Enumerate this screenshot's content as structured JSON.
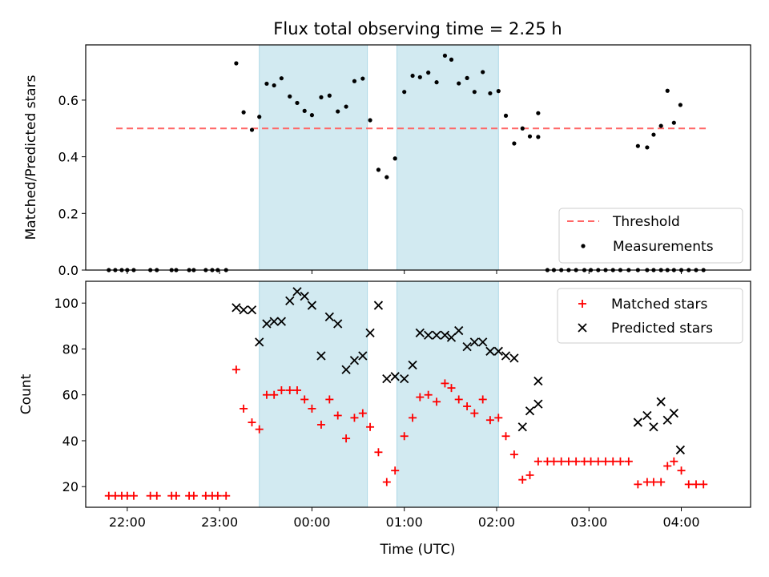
{
  "chart_data": [
    {
      "type": "scatter",
      "title": "Flux total observing time = 2.25 h",
      "xlabel": "",
      "ylabel": "Matched/Predicted stars",
      "xlim": [
        21.55,
        28.75
      ],
      "ylim": [
        0.0,
        0.795
      ],
      "yticks": [
        0.0,
        0.2,
        0.4,
        0.6
      ],
      "yticklabels": [
        "0.0",
        "0.2",
        "0.4",
        "0.6"
      ],
      "xticks": [
        22,
        23,
        24,
        25,
        26,
        27,
        28
      ],
      "xticklabels": [
        "",
        "",
        "",
        "",
        "",
        "",
        ""
      ],
      "shaded_intervals": [
        [
          23.43,
          24.6
        ],
        [
          24.92,
          26.02
        ]
      ],
      "shade_color": "#add8e6",
      "threshold": {
        "name": "Threshold",
        "y": 0.5,
        "x_range": [
          21.88,
          28.28
        ],
        "color": "#ff6666"
      },
      "series": [
        {
          "name": "Measurements",
          "marker": "dot",
          "color": "#000000",
          "x": [
            21.8,
            21.87,
            21.94,
            22.0,
            22.07,
            22.25,
            22.32,
            22.48,
            22.53,
            22.67,
            22.72,
            22.85,
            22.92,
            22.98,
            23.07,
            23.18,
            23.26,
            23.35,
            23.43,
            23.51,
            23.59,
            23.67,
            23.76,
            23.84,
            23.92,
            24.0,
            24.1,
            24.19,
            24.28,
            24.37,
            24.46,
            24.55,
            24.63,
            24.72,
            24.81,
            24.9,
            25.0,
            25.09,
            25.17,
            25.26,
            25.35,
            25.44,
            25.51,
            25.59,
            25.68,
            25.76,
            25.85,
            25.93,
            26.02,
            26.1,
            26.19,
            26.28,
            26.36,
            26.45,
            26.55,
            26.62,
            26.7,
            26.78,
            26.86,
            26.95,
            27.02,
            27.1,
            27.18,
            27.26,
            27.34,
            27.43,
            27.53,
            27.63,
            27.7,
            27.78,
            27.85,
            27.92,
            28.0,
            28.08,
            28.16,
            28.24
          ],
          "y": [
            0.0,
            0.0,
            0.0,
            0.0,
            0.0,
            0.0,
            0.0,
            0.0,
            0.0,
            0.0,
            0.0,
            0.0,
            0.0,
            0.0,
            0.0,
            0.73,
            0.557,
            0.495,
            0.541,
            0.658,
            0.652,
            0.677,
            0.613,
            0.59,
            0.562,
            0.547,
            0.61,
            0.616,
            0.56,
            0.577,
            0.667,
            0.676,
            0.529,
            0.354,
            0.328,
            0.394,
            0.629,
            0.686,
            0.681,
            0.697,
            0.663,
            0.757,
            0.743,
            0.659,
            0.678,
            0.629,
            0.699,
            0.624,
            0.632,
            0.545,
            0.447,
            0.5,
            0.472,
            0.554,
            0.0,
            0.0,
            0.0,
            0.0,
            0.0,
            0.0,
            0.0,
            0.0,
            0.0,
            0.0,
            0.0,
            0.0,
            0.0,
            0.0,
            0.0,
            0.0,
            0.0,
            0.0,
            0.0,
            0.0,
            0.0,
            0.0
          ]
        },
        {
          "name": "",
          "marker": "dot",
          "color": "#000000",
          "x": [
            26.45,
            27.53,
            27.63,
            27.7,
            27.78,
            27.85,
            27.92
          ],
          "y": [
            0.47,
            0.438,
            0.433,
            0.478,
            0.509,
            0.633,
            0.52
          ]
        },
        {
          "name": "",
          "marker": "dot",
          "color": "#000000",
          "x": [
            27.99
          ],
          "y": [
            0.583
          ]
        }
      ],
      "legend": {
        "placement": "lower-right",
        "entries": [
          "Threshold",
          "Measurements"
        ]
      }
    },
    {
      "type": "scatter",
      "title": "",
      "xlabel": "Time (UTC)",
      "ylabel": "Count",
      "xlim": [
        21.55,
        28.75
      ],
      "ylim": [
        11,
        109.5
      ],
      "yticks": [
        20,
        40,
        60,
        80,
        100
      ],
      "yticklabels": [
        "20",
        "40",
        "60",
        "80",
        "100"
      ],
      "xticks": [
        22,
        23,
        24,
        25,
        26,
        27,
        28
      ],
      "xticklabels": [
        "22:00",
        "23:00",
        "00:00",
        "01:00",
        "02:00",
        "03:00",
        "04:00"
      ],
      "shaded_intervals": [
        [
          23.43,
          24.6
        ],
        [
          24.92,
          26.02
        ]
      ],
      "shade_color": "#add8e6",
      "series": [
        {
          "name": "Matched stars",
          "marker": "plus",
          "color": "#ff0000",
          "x": [
            21.8,
            21.87,
            21.94,
            22.0,
            22.07,
            22.25,
            22.32,
            22.48,
            22.53,
            22.67,
            22.72,
            22.85,
            22.92,
            22.98,
            23.07,
            23.18,
            23.26,
            23.35,
            23.43,
            23.51,
            23.59,
            23.67,
            23.76,
            23.84,
            23.92,
            24.0,
            24.1,
            24.19,
            24.28,
            24.37,
            24.46,
            24.55,
            24.63,
            24.72,
            24.81,
            24.9,
            25.0,
            25.09,
            25.17,
            25.26,
            25.35,
            25.44,
            25.51,
            25.59,
            25.68,
            25.76,
            25.85,
            25.93,
            26.02,
            26.1,
            26.19,
            26.28,
            26.36,
            26.45,
            26.55,
            26.62,
            26.7,
            26.78,
            26.86,
            26.95,
            27.02,
            27.1,
            27.18,
            27.26,
            27.34,
            27.43,
            27.53,
            27.63,
            27.7,
            27.78,
            27.85,
            27.92,
            28.0,
            28.08,
            28.16,
            28.24
          ],
          "y": [
            16,
            16,
            16,
            16,
            16,
            16,
            16,
            16,
            16,
            16,
            16,
            16,
            16,
            16,
            16,
            71,
            54,
            48,
            45,
            60,
            60,
            62,
            62,
            62,
            58,
            54,
            47,
            58,
            51,
            41,
            50,
            52,
            46,
            35,
            22,
            27,
            42,
            50,
            59,
            60,
            57,
            65,
            63,
            58,
            55,
            52,
            58,
            49,
            50,
            42,
            34,
            23,
            25,
            31,
            31,
            31,
            31,
            31,
            31,
            31,
            31,
            31,
            31,
            31,
            31,
            31,
            21,
            22,
            22,
            22,
            29,
            31,
            27,
            21,
            21,
            21
          ]
        },
        {
          "name": "Predicted stars",
          "marker": "x",
          "color": "#000000",
          "x": [
            23.18,
            23.26,
            23.35,
            23.43,
            23.51,
            23.59,
            23.67,
            23.76,
            23.84,
            23.92,
            24.0,
            24.1,
            24.19,
            24.28,
            24.37,
            24.46,
            24.55,
            24.63,
            24.72,
            24.81,
            24.9,
            25.0,
            25.09,
            25.17,
            25.26,
            25.35,
            25.44,
            25.51,
            25.59,
            25.68,
            25.76,
            25.85,
            25.93,
            26.02,
            26.1,
            26.19,
            26.28,
            26.36,
            26.45,
            27.53,
            27.63,
            27.7,
            27.78,
            27.85,
            27.92,
            27.99
          ],
          "y": [
            98,
            97,
            97,
            83,
            91,
            92,
            92,
            101,
            105,
            103,
            99,
            77,
            94,
            91,
            71,
            75,
            77,
            87,
            99,
            67,
            68,
            67,
            73,
            87,
            86,
            86,
            86,
            85,
            88,
            81,
            83,
            83,
            79,
            79,
            77,
            76,
            46,
            53,
            56,
            48,
            51,
            46,
            57,
            49,
            52,
            36
          ]
        },
        {
          "name": "",
          "marker": "x",
          "color": "#000000",
          "x": [
            26.45
          ],
          "y": [
            66
          ]
        }
      ],
      "legend": {
        "placement": "upper-right",
        "entries": [
          "Matched stars",
          "Predicted stars"
        ]
      }
    }
  ]
}
